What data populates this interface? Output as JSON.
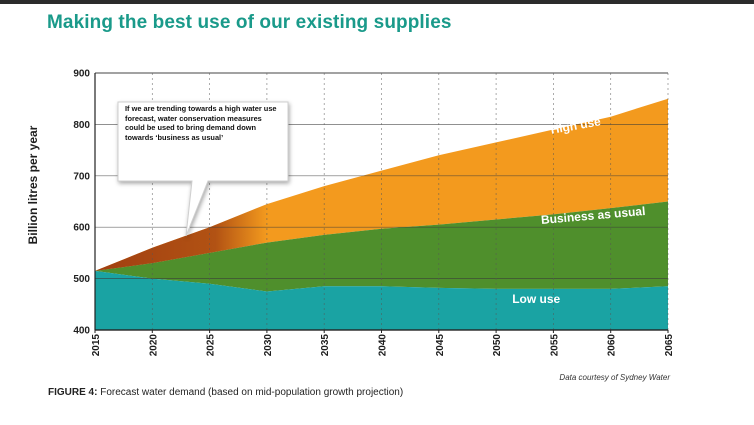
{
  "title": "Making the best use of our existing supplies",
  "colors": {
    "title": "#1a9a8a",
    "high_use": "#f39a1e",
    "business_as_usual": "#4f8f2c",
    "low_use": "#1aa3a3",
    "trend_overlay": "#9c3a10"
  },
  "callout_text": "If we are trending towards a high water use forecast, water conservation measures could be used to bring demand down towards ‘business as usual’",
  "caption": {
    "figure_label": "FIGURE 4:",
    "text": "Forecast water demand (based on mid-population growth projection)"
  },
  "credit": "Data courtesy of Sydney Water",
  "chart_data": {
    "type": "area",
    "ylabel": "Billion litres per year",
    "xlabel": "",
    "xlim": [
      2015,
      2065
    ],
    "ylim": [
      400,
      900
    ],
    "yticks": [
      400,
      500,
      600,
      700,
      800,
      900
    ],
    "xticks": [
      2015,
      2020,
      2025,
      2030,
      2035,
      2040,
      2045,
      2050,
      2055,
      2060,
      2065
    ],
    "grid": "horizontal",
    "x": [
      2015,
      2020,
      2025,
      2030,
      2035,
      2040,
      2045,
      2050,
      2055,
      2060,
      2065
    ],
    "series": [
      {
        "name": "High use",
        "values": [
          515,
          560,
          600,
          645,
          680,
          710,
          740,
          765,
          790,
          815,
          850
        ]
      },
      {
        "name": "Business as usual",
        "values": [
          515,
          530,
          550,
          570,
          585,
          597,
          605,
          615,
          625,
          637,
          650
        ]
      },
      {
        "name": "Low use",
        "values": [
          515,
          500,
          490,
          475,
          485,
          485,
          482,
          480,
          480,
          480,
          485
        ]
      }
    ]
  }
}
